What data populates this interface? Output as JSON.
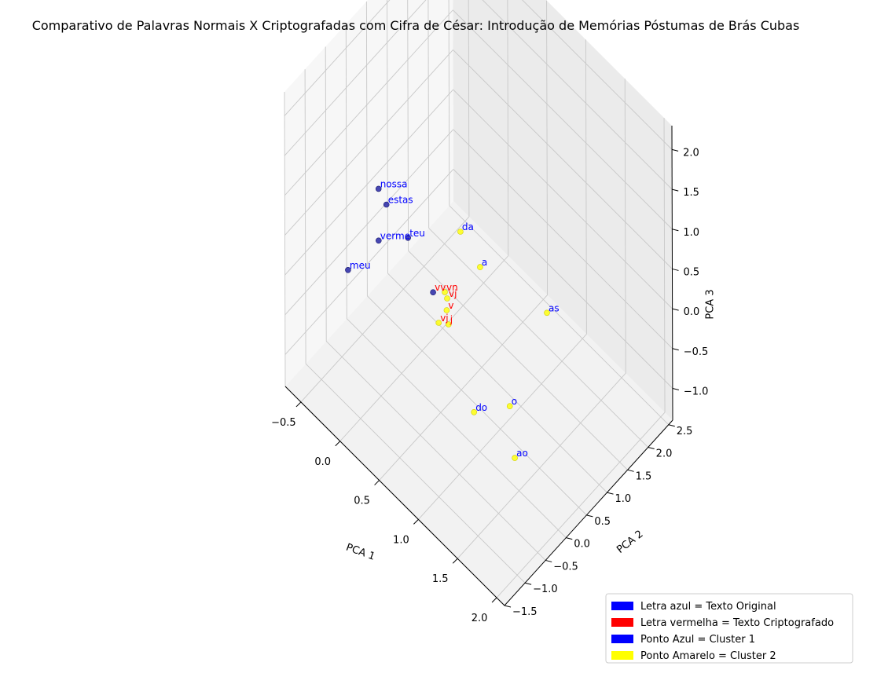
{
  "chart_data": {
    "type": "scatter",
    "title": "Comparativo de Palavras Normais X Criptografadas com Cifra de César: Introdução de Memórias Póstumas de Brás Cubas",
    "xlabel": "PCA 1",
    "ylabel": "PCA 2",
    "zlabel": "PCA 3",
    "xlim": [
      -0.7,
      2.1
    ],
    "ylim": [
      -1.5,
      2.6
    ],
    "zlim": [
      -1.4,
      2.3
    ],
    "x_ticks": [
      "−0.5",
      "0.0",
      "0.5",
      "1.0",
      "1.5",
      "2.0"
    ],
    "y_ticks": [
      "−1.5",
      "−1.0",
      "−0.5",
      "0.0",
      "0.5",
      "1.0",
      "1.5",
      "2.0",
      "2.5"
    ],
    "z_ticks": [
      "−1.0",
      "−0.5",
      "0.0",
      "0.5",
      "1.0",
      "1.5",
      "2.0"
    ],
    "grid": true,
    "legend_position": "bottom-right",
    "legend": [
      {
        "label": "Letra azul = Texto Original",
        "color": "#0000ff"
      },
      {
        "label": "Letra vermelha = Texto Criptografado",
        "color": "#ff0000"
      },
      {
        "label": "Ponto Azul = Cluster 1",
        "color": "#0000ff"
      },
      {
        "label": "Ponto Amarelo = Cluster 2",
        "color": "#ffff00"
      }
    ],
    "series": [
      {
        "cluster": 1,
        "color": "#1a1aa0",
        "points": [
          {
            "label": "meu",
            "label_color": "#0000ff",
            "x": -0.55,
            "y": -0.25,
            "z": -0.5
          },
          {
            "label": "nossa",
            "label_color": "#0000ff",
            "x": -0.5,
            "y": 0.4,
            "z": 0.2
          },
          {
            "label": "estas",
            "label_color": "#0000ff",
            "x": -0.4,
            "y": 0.4,
            "z": 0.1
          },
          {
            "label": "verme",
            "label_color": "#0000ff",
            "x": -0.5,
            "y": 0.4,
            "z": -0.45
          },
          {
            "label": "teu",
            "label_color": "#0000ff",
            "x": -0.15,
            "y": 0.45,
            "z": -0.1
          },
          {
            "label": "vv",
            "label_color": "#ff0000",
            "x": 0.3,
            "y": 0.2,
            "z": -0.2
          }
        ]
      },
      {
        "cluster": 2,
        "color": "#ffff00",
        "points": [
          {
            "label": "da",
            "label_color": "#0000ff",
            "x": 0.6,
            "y": 0.3,
            "z": 0.8
          },
          {
            "label": "a",
            "label_color": "#0000ff",
            "x": 0.85,
            "y": 0.3,
            "z": 0.6
          },
          {
            "label": "as",
            "label_color": "#0000ff",
            "x": 1.6,
            "y": 0.5,
            "z": 0.65
          },
          {
            "label": "vn",
            "label_color": "#ff0000",
            "x": 0.45,
            "y": 0.2,
            "z": -0.05
          },
          {
            "label": "vj",
            "label_color": "#ff0000",
            "x": 0.48,
            "y": 0.2,
            "z": -0.1
          },
          {
            "label": "v",
            "label_color": "#ff0000",
            "x": 0.5,
            "y": 0.15,
            "z": -0.2
          },
          {
            "label": "j",
            "label_color": "#ff0000",
            "x": 0.55,
            "y": 0.1,
            "z": -0.3
          },
          {
            "label": "vj",
            "label_color": "#ff0000",
            "x": 0.45,
            "y": 0.05,
            "z": -0.35
          },
          {
            "label": "o",
            "label_color": "#0000ff",
            "x": 1.7,
            "y": -0.6,
            "z": 0.2
          },
          {
            "label": "do",
            "label_color": "#0000ff",
            "x": 1.4,
            "y": -0.9,
            "z": 0.0
          },
          {
            "label": "ao",
            "label_color": "#0000ff",
            "x": 2.0,
            "y": -1.05,
            "z": 0.1
          }
        ]
      }
    ]
  }
}
